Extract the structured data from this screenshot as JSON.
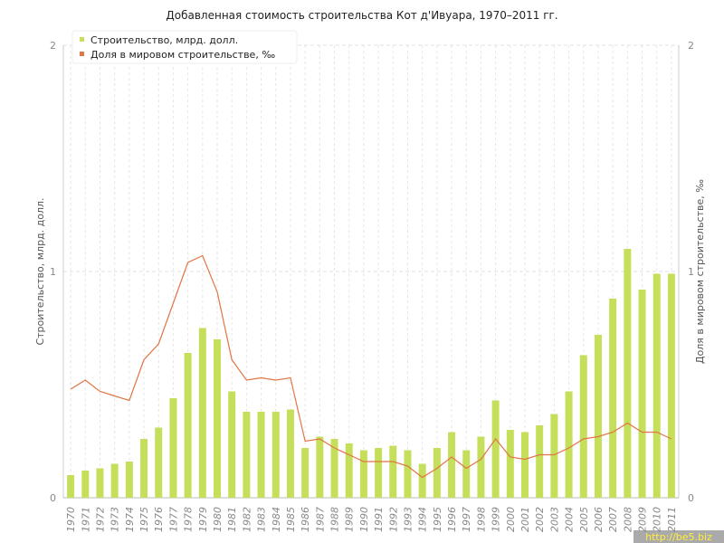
{
  "chart_data": {
    "type": "bar_line",
    "title": "Добавленная стоимость строительства Кот д'Ивуара, 1970–2011 гг.",
    "y_label": "Строительство, млрд. долл.",
    "y2_label": "Доля в мировом строительстве, ‰",
    "watermark": "http://be5.biz",
    "categories": [
      "1970",
      "1971",
      "1972",
      "1973",
      "1974",
      "1975",
      "1976",
      "1977",
      "1978",
      "1979",
      "1980",
      "1981",
      "1982",
      "1983",
      "1984",
      "1985",
      "1986",
      "1987",
      "1988",
      "1989",
      "1990",
      "1991",
      "1992",
      "1993",
      "1994",
      "1995",
      "1996",
      "1997",
      "1998",
      "1999",
      "2000",
      "2001",
      "2002",
      "2003",
      "2004",
      "2005",
      "2006",
      "2007",
      "2008",
      "2009",
      "2010",
      "2011"
    ],
    "series": [
      {
        "name": "Строительство, млрд. долл.",
        "color": "#c5df5a",
        "type": "bar",
        "values": [
          0.1,
          0.12,
          0.13,
          0.15,
          0.16,
          0.26,
          0.31,
          0.44,
          0.64,
          0.75,
          0.7,
          0.47,
          0.38,
          0.38,
          0.38,
          0.39,
          0.22,
          0.27,
          0.26,
          0.24,
          0.21,
          0.22,
          0.23,
          0.21,
          0.15,
          0.22,
          0.29,
          0.21,
          0.27,
          0.43,
          0.3,
          0.29,
          0.32,
          0.37,
          0.47,
          0.63,
          0.72,
          0.88,
          1.1,
          0.92,
          0.99,
          0.99
        ]
      },
      {
        "name": "Доля в мировом строительстве, ‰",
        "color": "#e07545",
        "type": "line",
        "axis": "y2",
        "values": [
          0.48,
          0.52,
          0.47,
          0.45,
          0.43,
          0.61,
          0.68,
          0.86,
          1.04,
          1.07,
          0.91,
          0.61,
          0.52,
          0.53,
          0.52,
          0.53,
          0.25,
          0.26,
          0.22,
          0.19,
          0.16,
          0.16,
          0.16,
          0.14,
          0.09,
          0.13,
          0.18,
          0.13,
          0.17,
          0.26,
          0.18,
          0.17,
          0.19,
          0.19,
          0.22,
          0.26,
          0.27,
          0.29,
          0.33,
          0.29,
          0.29,
          0.26
        ]
      }
    ],
    "ylim": [
      0,
      2
    ],
    "yticks": [
      0,
      1,
      2
    ],
    "y2lim": [
      0,
      2
    ],
    "y2ticks": [
      0,
      1,
      2
    ],
    "grid": true,
    "legend": "top-left"
  }
}
